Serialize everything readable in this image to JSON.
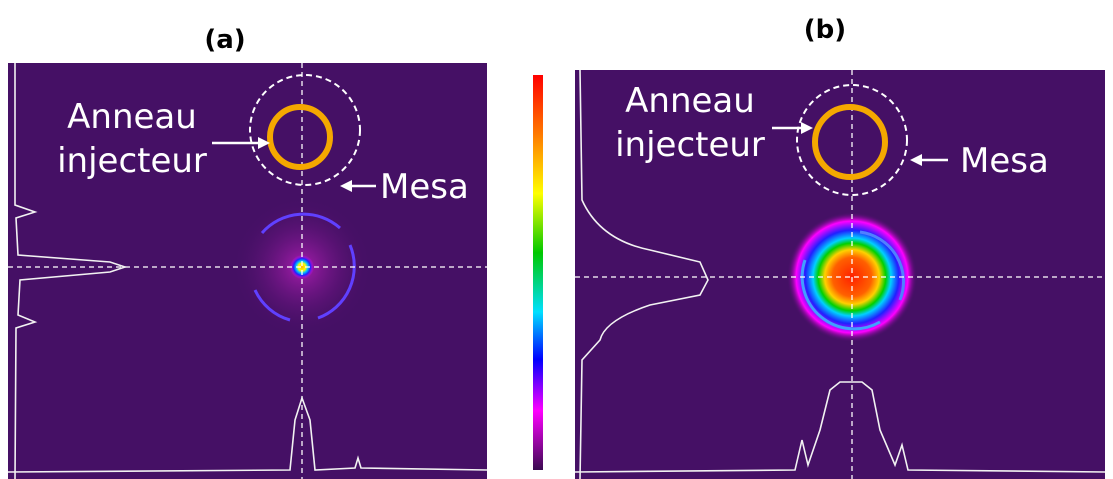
{
  "panels": [
    {
      "label": "(a)",
      "annotations": {
        "ring": [
          "Anneau",
          "injecteur"
        ],
        "mesa": "Mesa"
      }
    },
    {
      "label": "(b)",
      "annotations": {
        "ring": [
          "Anneau",
          "injecteur"
        ],
        "mesa": "Mesa"
      }
    }
  ]
}
